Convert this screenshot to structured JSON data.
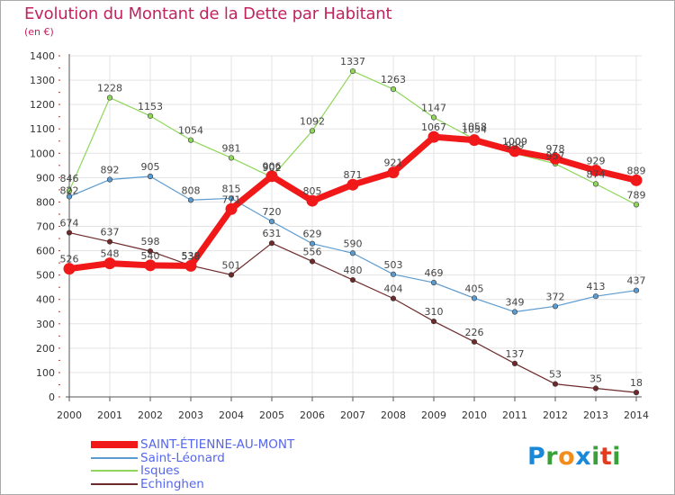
{
  "title": "Evolution du Montant de la Dette par Habitant",
  "subtitle": "(en €)",
  "logo": {
    "text": "Proxiti",
    "letters": [
      "P",
      "r",
      "o",
      "x",
      "i",
      "t",
      "i"
    ],
    "colors": [
      "#1a88d9",
      "#3aa13a",
      "#f28c1c",
      "#1a88d9",
      "#3aa13a",
      "#e23b1e",
      "#3aa13a"
    ]
  },
  "chart_data": {
    "type": "line",
    "title": "Evolution du Montant de la Dette par Habitant",
    "ylabel": "(en €)",
    "x": [
      "2000",
      "2001",
      "2002",
      "2003",
      "2004",
      "2005",
      "2006",
      "2007",
      "2008",
      "2009",
      "2010",
      "2011",
      "2012",
      "2013",
      "2014"
    ],
    "ylim": [
      0,
      1400
    ],
    "yticks": [
      0,
      100,
      200,
      300,
      400,
      500,
      600,
      700,
      800,
      900,
      1000,
      1100,
      1200,
      1300,
      1400
    ],
    "grid": true,
    "legend_position": "bottom-left",
    "series": [
      {
        "name": "Echinghen",
        "color": "#6e2a2a",
        "width": 1.2,
        "marker": 2.8,
        "values": [
          674,
          637,
          598,
          539,
          501,
          631,
          556,
          480,
          404,
          310,
          226,
          137,
          53,
          35,
          18
        ]
      },
      {
        "name": "Saint-Léonard",
        "color": "#5b9bd0",
        "width": 1.2,
        "marker": 2.8,
        "values": [
          822,
          892,
          905,
          808,
          815,
          720,
          629,
          590,
          503,
          469,
          405,
          349,
          372,
          413,
          437
        ]
      },
      {
        "name": "Isques",
        "color": "#8fd65a",
        "width": 1.2,
        "marker": 2.8,
        "values": [
          846,
          1228,
          1153,
          1054,
          981,
          902,
          1092,
          1337,
          1263,
          1147,
          1058,
          999,
          957,
          874,
          789
        ]
      },
      {
        "name": "SAINT-ÉTIENNE-AU-MONT",
        "color": "#f01818",
        "width": 7,
        "marker": 6.5,
        "values": [
          526,
          548,
          540,
          538,
          771,
          906,
          805,
          871,
          921,
          1067,
          1054,
          1009,
          978,
          929,
          889
        ]
      }
    ],
    "value_labels": [
      {
        "x": "2000",
        "text": "846",
        "dy": -14
      },
      {
        "x": "2000",
        "text": "822",
        "dy": -7
      },
      {
        "x": "2000",
        "text": "674",
        "dy": -11
      },
      {
        "x": "2000",
        "text": "526",
        "dy": -11
      },
      {
        "x": "2001",
        "text": "1228",
        "dy": -11
      },
      {
        "x": "2001",
        "text": "892",
        "dy": -11
      },
      {
        "x": "2001",
        "text": "637",
        "dy": -11
      },
      {
        "x": "2001",
        "text": "548",
        "dy": -11
      },
      {
        "x": "2002",
        "text": "1153",
        "dy": -11
      },
      {
        "x": "2002",
        "text": "905",
        "dy": -11
      },
      {
        "x": "2002",
        "text": "598",
        "dy": -11
      },
      {
        "x": "2002",
        "text": "540",
        "dy": -11
      },
      {
        "x": "2003",
        "text": "1054",
        "dy": -11
      },
      {
        "x": "2003",
        "text": "808",
        "dy": -11
      },
      {
        "x": "2003",
        "text": "539",
        "dy": -11
      },
      {
        "x": "2003",
        "text": "538",
        "dy": -11
      },
      {
        "x": "2004",
        "text": "981",
        "dy": -11
      },
      {
        "x": "2004",
        "text": "815",
        "dy": -11
      },
      {
        "x": "2004",
        "text": "771",
        "dy": -11
      },
      {
        "x": "2004",
        "text": "501",
        "dy": -11
      },
      {
        "x": "2005",
        "text": "906",
        "dy": -11
      },
      {
        "x": "2005",
        "text": "902",
        "dy": -11
      },
      {
        "x": "2005",
        "text": "720",
        "dy": -11
      },
      {
        "x": "2005",
        "text": "631",
        "dy": -11
      },
      {
        "x": "2006",
        "text": "1092",
        "dy": -11
      },
      {
        "x": "2006",
        "text": "805",
        "dy": -11
      },
      {
        "x": "2006",
        "text": "629",
        "dy": -11
      },
      {
        "x": "2006",
        "text": "556",
        "dy": -11
      },
      {
        "x": "2007",
        "text": "1337",
        "dy": -11
      },
      {
        "x": "2007",
        "text": "871",
        "dy": -11
      },
      {
        "x": "2007",
        "text": "590",
        "dy": -11
      },
      {
        "x": "2007",
        "text": "480",
        "dy": -11
      },
      {
        "x": "2008",
        "text": "1263",
        "dy": -11
      },
      {
        "x": "2008",
        "text": "921",
        "dy": -11
      },
      {
        "x": "2008",
        "text": "503",
        "dy": -11
      },
      {
        "x": "2008",
        "text": "404",
        "dy": -11
      },
      {
        "x": "2009",
        "text": "1147",
        "dy": -11
      },
      {
        "x": "2009",
        "text": "1067",
        "dy": -11
      },
      {
        "x": "2009",
        "text": "469",
        "dy": -11
      },
      {
        "x": "2009",
        "text": "310",
        "dy": -11
      },
      {
        "x": "2010",
        "text": "1058",
        "dy": -14
      },
      {
        "x": "2010",
        "text": "1054",
        "dy": -12
      },
      {
        "x": "2010",
        "text": "405",
        "dy": -11
      },
      {
        "x": "2010",
        "text": "226",
        "dy": -11
      },
      {
        "x": "2011",
        "text": "1009",
        "dy": -11
      },
      {
        "x": "2011",
        "text": "999",
        "dy": -9
      },
      {
        "x": "2011",
        "text": "349",
        "dy": -11
      },
      {
        "x": "2011",
        "text": "137",
        "dy": -11
      },
      {
        "x": "2012",
        "text": "978",
        "dy": -11
      },
      {
        "x": "2012",
        "text": "957",
        "dy": -9
      },
      {
        "x": "2012",
        "text": "372",
        "dy": -11
      },
      {
        "x": "2012",
        "text": "53",
        "dy": -11
      },
      {
        "x": "2013",
        "text": "929",
        "dy": -11
      },
      {
        "x": "2013",
        "text": "874",
        "dy": -11
      },
      {
        "x": "2013",
        "text": "413",
        "dy": -11
      },
      {
        "x": "2013",
        "text": "35",
        "dy": -11
      },
      {
        "x": "2014",
        "text": "889",
        "dy": -11
      },
      {
        "x": "2014",
        "text": "789",
        "dy": -11
      },
      {
        "x": "2014",
        "text": "437",
        "dy": -11
      },
      {
        "x": "2014",
        "text": "18",
        "dy": -11
      }
    ],
    "legend": [
      {
        "name": "SAINT-ÉTIENNE-AU-MONT",
        "color": "#f01818",
        "thick": true
      },
      {
        "name": "Saint-Léonard",
        "color": "#5b9bd0",
        "thick": false
      },
      {
        "name": "Isques",
        "color": "#8fd65a",
        "thick": false
      },
      {
        "name": "Echinghen",
        "color": "#6e2a2a",
        "thick": false
      }
    ]
  }
}
